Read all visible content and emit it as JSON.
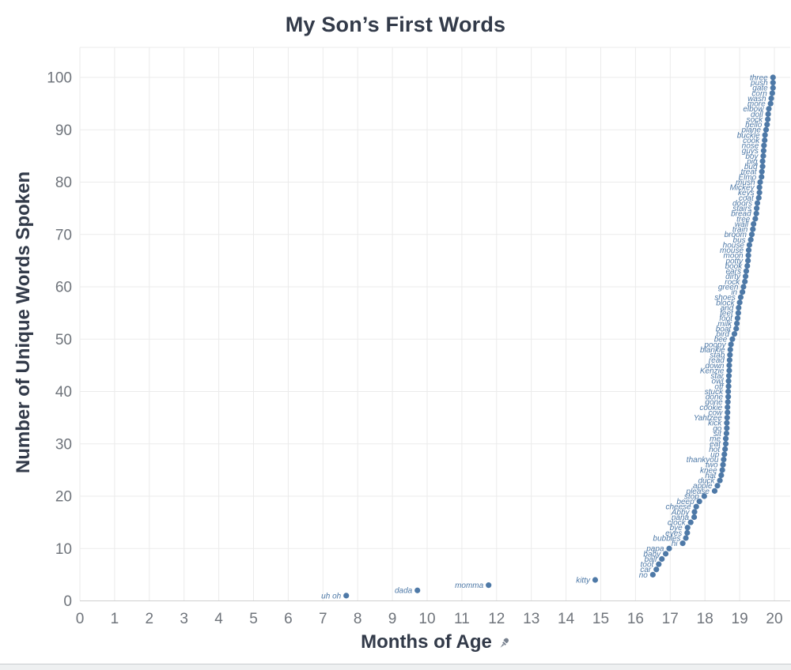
{
  "title": "My Son’s First Words",
  "x_axis": {
    "label": "Months of Age",
    "icon": "pin-icon",
    "ticks": [
      0,
      1,
      2,
      3,
      4,
      5,
      6,
      7,
      8,
      9,
      10,
      11,
      12,
      13,
      14,
      15,
      16,
      17,
      18,
      19,
      20
    ],
    "range": [
      0,
      20.5
    ]
  },
  "y_axis": {
    "label": "Number of Unique Words Spoken",
    "ticks": [
      0,
      10,
      20,
      30,
      40,
      50,
      60,
      70,
      80,
      90,
      100
    ],
    "range": [
      0,
      100
    ]
  },
  "colors": {
    "point": "#4e79a7",
    "point_label": "#4e79a7",
    "title_text": "#323a49",
    "tick_text": "#6f747b",
    "gridline": "#ebebeb",
    "axis_line": "#cfcfcf",
    "pin_icon": "#77808e"
  },
  "chart_data": {
    "type": "scatter",
    "title": "My Son’s First Words",
    "xlabel": "Months of Age",
    "ylabel": "Number of Unique Words Spoken",
    "xlim": [
      0,
      20.5
    ],
    "ylim": [
      0,
      100
    ],
    "grid": true,
    "point_label_style": "italic, right of-dot words, blue",
    "columns": [
      "word",
      "months_of_age",
      "unique_words_spoken"
    ],
    "points": [
      [
        "uh oh",
        7.67,
        1
      ],
      [
        "dada",
        9.72,
        2
      ],
      [
        "momma",
        11.77,
        3
      ],
      [
        "kitty",
        14.84,
        4
      ],
      [
        "no",
        16.5,
        5
      ],
      [
        "car",
        16.6,
        6
      ],
      [
        "toot",
        16.67,
        7
      ],
      [
        "ball",
        16.76,
        8
      ],
      [
        "baby",
        16.87,
        9
      ],
      [
        "papa",
        16.97,
        10
      ],
      [
        "hi",
        17.36,
        11
      ],
      [
        "bubbles",
        17.45,
        12
      ],
      [
        "eyes",
        17.49,
        13
      ],
      [
        "bye",
        17.5,
        14
      ],
      [
        "clock",
        17.59,
        15
      ],
      [
        "nana",
        17.69,
        16
      ],
      [
        "Abby",
        17.7,
        17
      ],
      [
        "cheese",
        17.75,
        18
      ],
      [
        "beep",
        17.84,
        19
      ],
      [
        "stop",
        17.98,
        20
      ],
      [
        "please",
        18.28,
        21
      ],
      [
        "apple",
        18.36,
        22
      ],
      [
        "duck",
        18.43,
        23
      ],
      [
        "hat",
        18.47,
        24
      ],
      [
        "knee",
        18.5,
        25
      ],
      [
        "two",
        18.52,
        26
      ],
      [
        "thankyou",
        18.54,
        27
      ],
      [
        "up",
        18.56,
        28
      ],
      [
        "hot",
        18.58,
        29
      ],
      [
        "eat",
        18.6,
        30
      ],
      [
        "me",
        18.6,
        31
      ],
      [
        "sit",
        18.62,
        32
      ],
      [
        "go",
        18.63,
        33
      ],
      [
        "kick",
        18.63,
        34
      ],
      [
        "Yahtzee",
        18.64,
        35
      ],
      [
        "cow",
        18.65,
        36
      ],
      [
        "cookie",
        18.65,
        37
      ],
      [
        "gone",
        18.66,
        38
      ],
      [
        "done",
        18.67,
        39
      ],
      [
        "stuck",
        18.67,
        40
      ],
      [
        "off",
        18.68,
        41
      ],
      [
        "owl",
        18.68,
        42
      ],
      [
        "star",
        18.69,
        43
      ],
      [
        "Kenzie",
        18.7,
        44
      ],
      [
        "down",
        18.7,
        45
      ],
      [
        "read",
        18.71,
        46
      ],
      [
        "stab",
        18.72,
        47
      ],
      [
        "blankie",
        18.73,
        48
      ],
      [
        "poopy",
        18.75,
        49
      ],
      [
        "bee",
        18.79,
        50
      ],
      [
        "bird",
        18.85,
        51
      ],
      [
        "boat",
        18.9,
        52
      ],
      [
        "milk",
        18.92,
        53
      ],
      [
        "foot",
        18.94,
        54
      ],
      [
        "feet",
        18.96,
        55
      ],
      [
        "and",
        18.97,
        56
      ],
      [
        "block",
        19.0,
        57
      ],
      [
        "shoes",
        19.03,
        58
      ],
      [
        "in",
        19.08,
        59
      ],
      [
        "green",
        19.11,
        60
      ],
      [
        "rock",
        19.15,
        61
      ],
      [
        "dirty",
        19.17,
        62
      ],
      [
        "ears",
        19.19,
        63
      ],
      [
        "book",
        19.22,
        64
      ],
      [
        "potty",
        19.24,
        65
      ],
      [
        "moon",
        19.25,
        66
      ],
      [
        "mouse",
        19.26,
        67
      ],
      [
        "house",
        19.28,
        68
      ],
      [
        "bus",
        19.32,
        69
      ],
      [
        "broom",
        19.35,
        70
      ],
      [
        "train",
        19.38,
        71
      ],
      [
        "wall",
        19.4,
        72
      ],
      [
        "tree",
        19.45,
        73
      ],
      [
        "bread",
        19.48,
        74
      ],
      [
        "stairs",
        19.49,
        75
      ],
      [
        "doors",
        19.51,
        76
      ],
      [
        "coat",
        19.55,
        77
      ],
      [
        "keys",
        19.57,
        78
      ],
      [
        "Mickey",
        19.57,
        79
      ],
      [
        "mush",
        19.59,
        80
      ],
      [
        "Elmo",
        19.63,
        81
      ],
      [
        "treat",
        19.64,
        82
      ],
      [
        "bud",
        19.66,
        83
      ],
      [
        "pig",
        19.66,
        84
      ],
      [
        "boy",
        19.68,
        85
      ],
      [
        "guys",
        19.69,
        86
      ],
      [
        "nose",
        19.7,
        87
      ],
      [
        "cook",
        19.72,
        88
      ],
      [
        "buckle",
        19.73,
        89
      ],
      [
        "plane",
        19.76,
        90
      ],
      [
        "hello",
        19.79,
        91
      ],
      [
        "sock",
        19.81,
        92
      ],
      [
        "doll",
        19.82,
        93
      ],
      [
        "elbow",
        19.84,
        94
      ],
      [
        "more",
        19.89,
        95
      ],
      [
        "wash",
        19.91,
        96
      ],
      [
        "corn",
        19.94,
        97
      ],
      [
        "gate",
        19.96,
        98
      ],
      [
        "push",
        19.96,
        99
      ],
      [
        "three",
        19.96,
        100
      ]
    ]
  }
}
